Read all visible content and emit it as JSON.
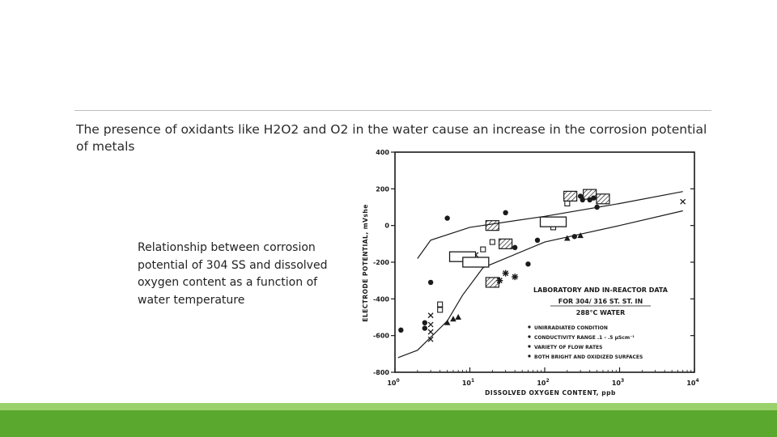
{
  "slide": {
    "intro_text": "The presence of oxidants like H2O2  and O2  in the water cause an increase in the corrosion potential of metals",
    "caption_text": "Relationship between corrosion potential of 304 SS and dissolved oxygen content as a function of water temperature",
    "colors": {
      "accent_green": "#5aa82e",
      "accent_light": "#9bd16b",
      "ink": "#1a1a1a"
    }
  },
  "chart_data": {
    "type": "scatter",
    "ylabel": "ELECTRODE POTENTIAL, mVshe",
    "xlabel": "DISSOLVED OXYGEN CONTENT, ppb",
    "x_scale": "log",
    "xlim": [
      1,
      10000
    ],
    "ylim": [
      -800,
      400
    ],
    "x_ticks": [
      {
        "value": 1,
        "base": "10",
        "exp": "0"
      },
      {
        "value": 10,
        "base": "10",
        "exp": "1"
      },
      {
        "value": 100,
        "base": "10",
        "exp": "2"
      },
      {
        "value": 1000,
        "base": "10",
        "exp": "3"
      },
      {
        "value": 10000,
        "base": "10",
        "exp": "4"
      }
    ],
    "y_ticks": [
      400,
      200,
      0,
      -200,
      -400,
      -600,
      -800
    ],
    "legend": {
      "title_lines": [
        "LABORATORY AND IN-REACTOR DATA",
        "FOR  304/ 316 ST. ST. IN",
        "288°C WATER"
      ],
      "bullets": [
        "UNIRRADIATED CONDITION",
        "CONDUCTIVITY RANGE .1 - .5 µScm⁻¹",
        "VARIETY OF FLOW RATES",
        "BOTH BRIGHT AND OXIDIZED SURFACES"
      ]
    },
    "band_upper": [
      [
        2,
        -180
      ],
      [
        3,
        -80
      ],
      [
        10,
        -10
      ],
      [
        100,
        50
      ],
      [
        1000,
        120
      ],
      [
        7000,
        185
      ]
    ],
    "band_lower": [
      [
        1.1,
        -720
      ],
      [
        2,
        -680
      ],
      [
        5,
        -520
      ],
      [
        8,
        -380
      ],
      [
        15,
        -230
      ],
      [
        100,
        -90
      ],
      [
        1000,
        0
      ],
      [
        7000,
        80
      ]
    ],
    "series": [
      {
        "marker": "circle",
        "points": [
          [
            1.2,
            -570
          ],
          [
            2.5,
            -530
          ],
          [
            2.5,
            -560
          ],
          [
            3,
            -310
          ],
          [
            5,
            40
          ],
          [
            30,
            70
          ],
          [
            40,
            -120
          ],
          [
            60,
            -210
          ],
          [
            80,
            -80
          ],
          [
            300,
            160
          ],
          [
            320,
            140
          ],
          [
            400,
            140
          ],
          [
            450,
            150
          ],
          [
            500,
            100
          ],
          [
            250,
            -60
          ]
        ]
      },
      {
        "marker": "triangle",
        "points": [
          [
            6,
            -510
          ],
          [
            7,
            -500
          ],
          [
            5,
            -530
          ],
          [
            300,
            -55
          ],
          [
            200,
            -70
          ]
        ]
      },
      {
        "marker": "x",
        "points": [
          [
            3,
            -490
          ],
          [
            3,
            -540
          ],
          [
            3,
            -580
          ],
          [
            3,
            -620
          ],
          [
            7000,
            130
          ],
          [
            12,
            -160
          ]
        ]
      },
      {
        "marker": "square",
        "points": [
          [
            4,
            -460
          ],
          [
            4,
            -430
          ],
          [
            20,
            -90
          ],
          [
            130,
            -10
          ],
          [
            200,
            120
          ],
          [
            15,
            -130
          ]
        ]
      },
      {
        "marker": "hatched-box",
        "points": [
          [
            20,
            0
          ],
          [
            30,
            -100
          ],
          [
            20,
            -310
          ],
          [
            400,
            170
          ],
          [
            600,
            145
          ],
          [
            220,
            160
          ]
        ]
      },
      {
        "marker": "open-box",
        "points": [
          [
            8,
            -170
          ],
          [
            12,
            -200
          ],
          [
            130,
            20
          ]
        ]
      },
      {
        "marker": "star",
        "points": [
          [
            30,
            -260
          ],
          [
            40,
            -280
          ],
          [
            25,
            -300
          ]
        ]
      }
    ]
  }
}
